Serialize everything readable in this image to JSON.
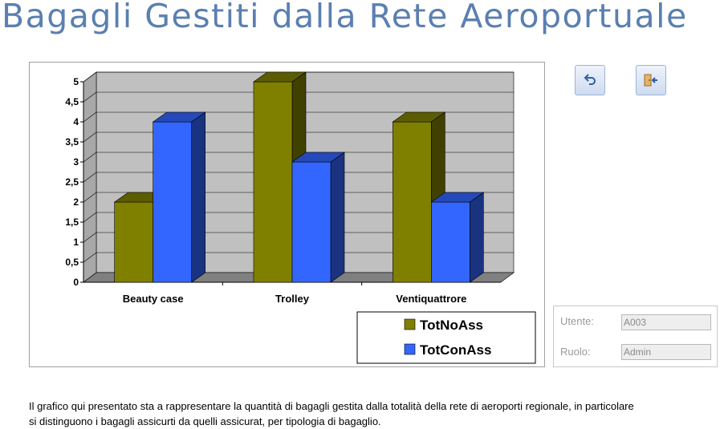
{
  "title": "Bagagli Gestiti dalla Rete Aeroportuale",
  "buttons": {
    "undo_icon": "undo-icon",
    "exit_icon": "exit-door-icon"
  },
  "user": {
    "utente_label": "Utente:",
    "utente_value": "A003",
    "ruolo_label": "Ruolo:",
    "ruolo_value": "Admin"
  },
  "description": "Il grafico qui presentato sta a rappresentare la quantità di bagagli gestita dalla totalità della rete di aeroporti regionale, in particolare si distinguono i bagagli assicurti da quelli assicurat, per tipologia di bagaglio.",
  "colors": {
    "title": "#5b7fb0",
    "series1": "#808000",
    "series2": "#3366ff",
    "wall": "#c0c0c0",
    "floor": "#808080"
  },
  "chart_data": {
    "type": "bar",
    "categories": [
      "Beauty case",
      "Trolley",
      "Ventiquattrore"
    ],
    "series": [
      {
        "name": "TotNoAss",
        "values": [
          2,
          5,
          4
        ]
      },
      {
        "name": "TotConAss",
        "values": [
          4,
          3,
          2
        ]
      }
    ],
    "yticks": [
      "0",
      "0,5",
      "1",
      "1,5",
      "2",
      "2,5",
      "3",
      "3,5",
      "4",
      "4,5",
      "5"
    ],
    "ylim": [
      0,
      5
    ],
    "grid": true,
    "legend": "bottom-right",
    "three_d": true
  }
}
